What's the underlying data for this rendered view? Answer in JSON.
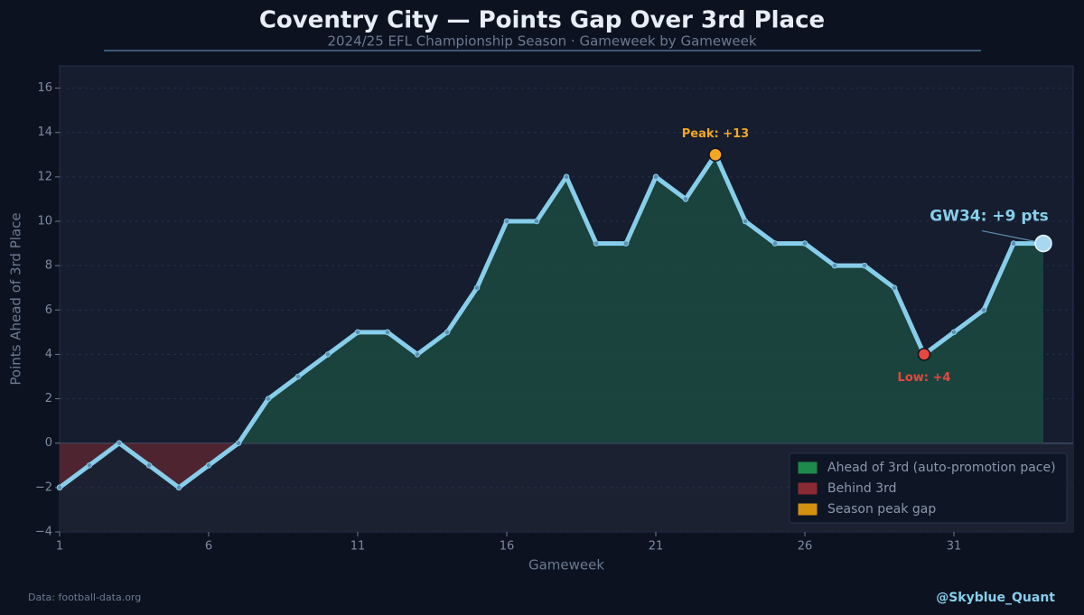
{
  "chart_data": {
    "type": "area-line",
    "title": "Coventry City — Points Gap Over 3rd Place",
    "subtitle": "2024/25 EFL Championship Season  ·  Gameweek by Gameweek",
    "xlabel": "Gameweek",
    "ylabel": "Points Ahead of 3rd Place",
    "x": [
      1,
      2,
      3,
      4,
      5,
      6,
      7,
      8,
      9,
      10,
      11,
      12,
      13,
      14,
      15,
      16,
      17,
      18,
      19,
      20,
      21,
      22,
      23,
      24,
      25,
      26,
      27,
      28,
      29,
      30,
      31,
      32,
      33,
      34
    ],
    "series": [
      {
        "name": "Points gap",
        "color": "#87ceeb",
        "values": [
          -2,
          -1,
          0,
          -1,
          -2,
          -1,
          0,
          2,
          3,
          4,
          5,
          5,
          4,
          5,
          7,
          10,
          10,
          12,
          9,
          9,
          12,
          11,
          13,
          10,
          9,
          9,
          8,
          8,
          7,
          4,
          5,
          6,
          9,
          9
        ]
      }
    ],
    "xlim": [
      1,
      35
    ],
    "ylim": [
      -4,
      17
    ],
    "xticks": [
      1,
      6,
      11,
      16,
      21,
      26,
      31
    ],
    "yticks": [
      {
        "value": -4,
        "label": "−4"
      },
      {
        "value": -2,
        "label": "−2"
      },
      0,
      2,
      4,
      6,
      8,
      10,
      12,
      14,
      16
    ],
    "grid": true,
    "annotations": [
      {
        "text": "Peak: +13",
        "x": 23,
        "color": "#f5a623"
      },
      {
        "text": "Low: +4",
        "x": 30,
        "color": "#e8473f"
      },
      {
        "text": "GW34: +9 pts",
        "x": 34,
        "color": "#87ceeb"
      }
    ],
    "legend": [
      {
        "label": "Ahead of 3rd (auto-promotion pace)",
        "color": "#1e8a4c"
      },
      {
        "label": "Behind 3rd",
        "color": "#8a2a33"
      },
      {
        "label": "Season peak gap",
        "color": "#d4900f"
      }
    ],
    "legend_position": "lower right",
    "source": "Data: football-data.org",
    "handle": "@Skyblue_Quant"
  }
}
